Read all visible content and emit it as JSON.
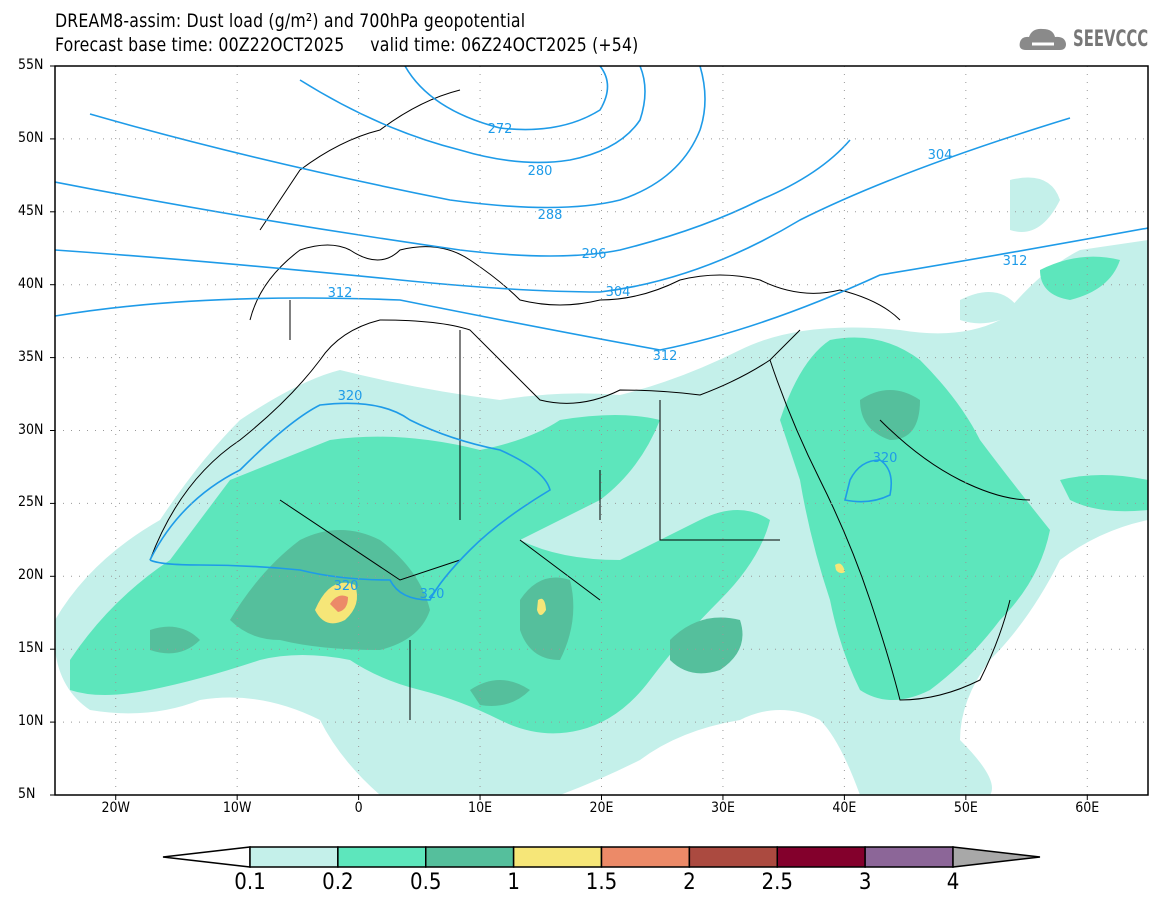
{
  "header": {
    "title": "DREAM8-assim: Dust load (g/m²) and 700hPa geopotential",
    "subtitle": "Forecast base time: 00Z22OCT2025     valid time: 06Z24OCT2025 (+54)",
    "logo_text": "SEEVCCC"
  },
  "map": {
    "lat_labels": [
      "55N",
      "50N",
      "45N",
      "40N",
      "35N",
      "30N",
      "25N",
      "20N",
      "15N",
      "10N",
      "5N"
    ],
    "lon_labels": [
      "20W",
      "10W",
      "0",
      "10E",
      "20E",
      "30E",
      "40E",
      "50E",
      "60E"
    ],
    "contour_labels": [
      "272",
      "280",
      "288",
      "296",
      "304",
      "312",
      "320",
      "304",
      "312",
      "312",
      "320",
      "320",
      "320"
    ],
    "contour_color": "#1e9be8"
  },
  "colorbar": {
    "colors": [
      "#c4f0ea",
      "#5de6bc",
      "#55bf9c",
      "#f6e678",
      "#ec8a68",
      "#ab4a40",
      "#83002c",
      "#8c6698"
    ],
    "under_color": "#ffffff",
    "over_color": "#a8a8a8",
    "labels": [
      "0.1",
      "0.2",
      "0.5",
      "1",
      "1.5",
      "2",
      "2.5",
      "3",
      "4"
    ]
  }
}
